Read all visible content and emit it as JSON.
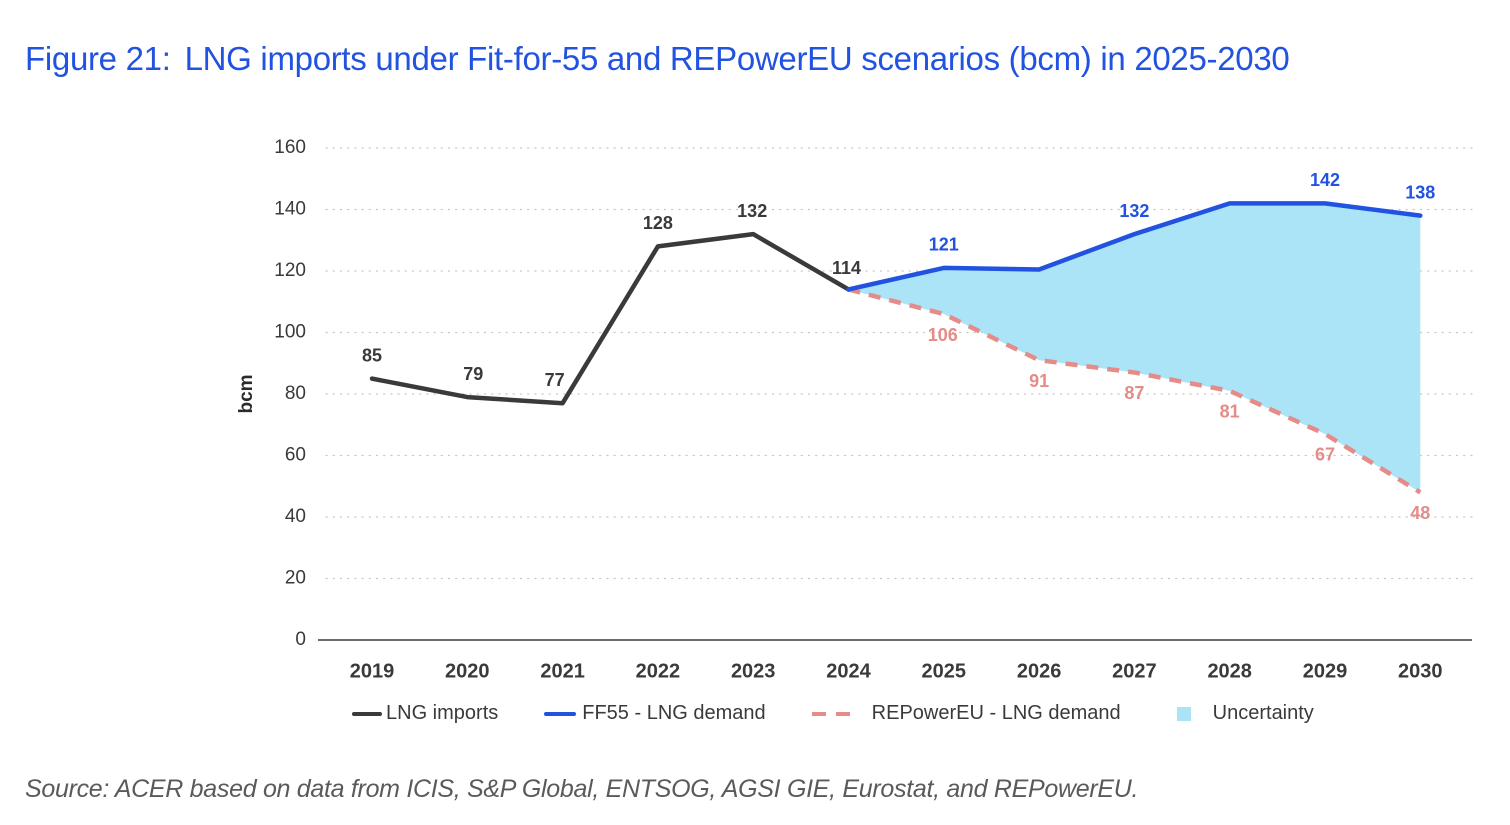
{
  "figure": {
    "label": "Figure 21:",
    "title": "LNG imports under Fit-for-55 and REPowerEU scenarios (bcm) in 2025-2030",
    "source": "Source: ACER based on data from ICIS, S&P Global, ENTSOG, AGSI GIE, Eurostat, and REPowerEU."
  },
  "colors": {
    "title": "#2153e0",
    "lng_imports": "#3a3a3a",
    "ff55": "#2153e0",
    "repowereu": "#e58b88",
    "uncertainty": "#abe3f7",
    "grid": "#c8c8c8",
    "axis": "#3a3a3a"
  },
  "legend": {
    "items": [
      {
        "label": "LNG imports",
        "type": "line",
        "color_key": "lng_imports"
      },
      {
        "label": "FF55 - LNG demand",
        "type": "line",
        "color_key": "ff55"
      },
      {
        "label": "REPowerEU - LNG demand",
        "type": "dash",
        "color_key": "repowereu"
      },
      {
        "label": "Uncertainty",
        "type": "box",
        "color_key": "uncertainty"
      }
    ]
  },
  "chart_data": {
    "type": "line",
    "title": "LNG imports under Fit-for-55 and REPowerEU scenarios (bcm) in 2025-2030",
    "xlabel": "",
    "ylabel": "bcm",
    "ylim": [
      0,
      160
    ],
    "yticks": [
      0,
      20,
      40,
      60,
      80,
      100,
      120,
      140,
      160
    ],
    "grid": true,
    "legend_position": "bottom",
    "categories": [
      "2019",
      "2020",
      "2021",
      "2022",
      "2023",
      "2024",
      "2025",
      "2026",
      "2027",
      "2028",
      "2029",
      "2030"
    ],
    "series": [
      {
        "name": "LNG imports",
        "style": "solid",
        "x": [
          "2019",
          "2020",
          "2021",
          "2022",
          "2023",
          "2024"
        ],
        "values": [
          85,
          79,
          77,
          128,
          132,
          114
        ],
        "labels": [
          "85",
          "79",
          "77",
          "128",
          "132",
          "114"
        ]
      },
      {
        "name": "FF55 - LNG demand",
        "style": "solid",
        "x": [
          "2024",
          "2025",
          "2026",
          "2027",
          "2028",
          "2029",
          "2030"
        ],
        "values": [
          114,
          121,
          120.5,
          132,
          142,
          142,
          138
        ],
        "labels": [
          "",
          "121",
          "",
          "132",
          "",
          "142",
          "138"
        ]
      },
      {
        "name": "REPowerEU - LNG demand",
        "style": "dashed",
        "x": [
          "2024",
          "2025",
          "2026",
          "2027",
          "2028",
          "2029",
          "2030"
        ],
        "values": [
          114,
          106,
          91,
          87,
          81,
          67,
          48
        ],
        "labels": [
          "",
          "106",
          "91",
          "87",
          "81",
          "67",
          "48"
        ]
      },
      {
        "name": "Uncertainty",
        "style": "area",
        "x": [
          "2024",
          "2025",
          "2026",
          "2027",
          "2028",
          "2029",
          "2030"
        ],
        "upper": [
          114,
          121,
          120.5,
          132,
          142,
          142,
          138
        ],
        "lower": [
          114,
          106,
          91,
          87,
          81,
          67,
          48
        ]
      }
    ]
  }
}
